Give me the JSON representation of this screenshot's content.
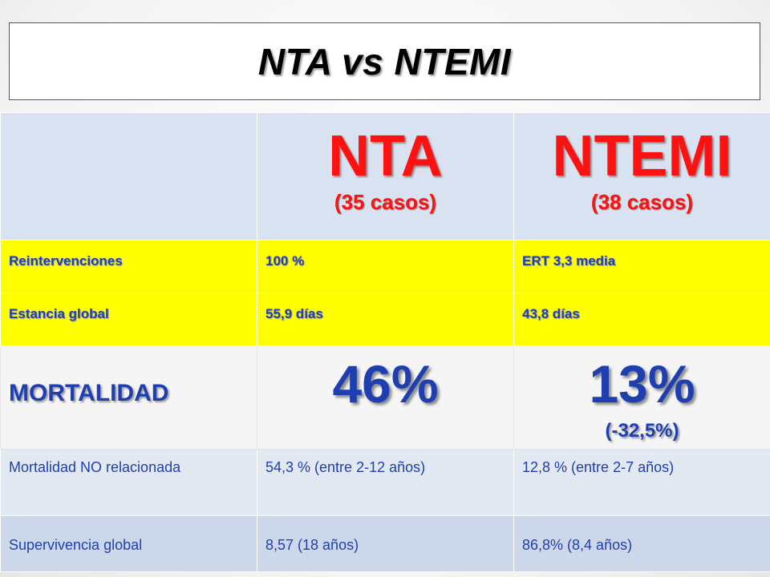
{
  "slide": {
    "title": "NTA  vs NTEMI"
  },
  "table": {
    "header": {
      "col1": {
        "name": "NTA",
        "cases": "(35 casos)"
      },
      "col2": {
        "name": "NTEMI",
        "cases": "(38 casos)"
      }
    },
    "rows": {
      "reinterventions": {
        "label": "Reintervenciones",
        "nta": "100 %",
        "ntemi": "ERT  3,3 media"
      },
      "stay": {
        "label": "Estancia global",
        "nta": "55,9 días",
        "ntemi": "43,8 días"
      },
      "mortality": {
        "label": "MORTALIDAD",
        "nta": "46%",
        "ntemi": "13%",
        "ntemi_delta": "(-32,5%)"
      },
      "unrelated_mortality": {
        "label": "Mortalidad NO relacionada",
        "nta": "54,3 % (entre 2-12 años)",
        "ntemi": "12,8 % (entre 2-7 años)"
      },
      "survival": {
        "label": "Supervivencia global",
        "nta": "8,57 (18 años)",
        "ntemi": "86,8% (8,4 años)"
      }
    }
  },
  "colors": {
    "accent_red": "#ff1111",
    "text_blue": "#1f3fb0",
    "highlight_yellow": "#ffff00",
    "header_blue": "#d9e2f0"
  }
}
